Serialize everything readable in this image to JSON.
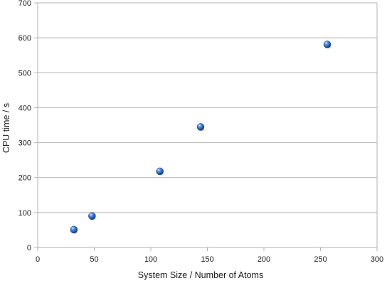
{
  "chart_data": {
    "type": "scatter",
    "title": "",
    "xlabel": "System Size / Number of Atoms",
    "ylabel": "CPU time / s",
    "xlim": [
      0,
      300
    ],
    "ylim": [
      0,
      700
    ],
    "x_ticks": [
      "0",
      "50",
      "100",
      "150",
      "200",
      "250",
      "300"
    ],
    "y_ticks": [
      "0",
      "100",
      "200",
      "300",
      "400",
      "500",
      "600",
      "700"
    ],
    "grid": "horizontal",
    "legend": "none",
    "marker_color": "#1f5fb0",
    "points": [
      {
        "x": 32,
        "y": 51
      },
      {
        "x": 48,
        "y": 90
      },
      {
        "x": 108,
        "y": 218
      },
      {
        "x": 144,
        "y": 345
      },
      {
        "x": 256,
        "y": 581
      }
    ]
  }
}
